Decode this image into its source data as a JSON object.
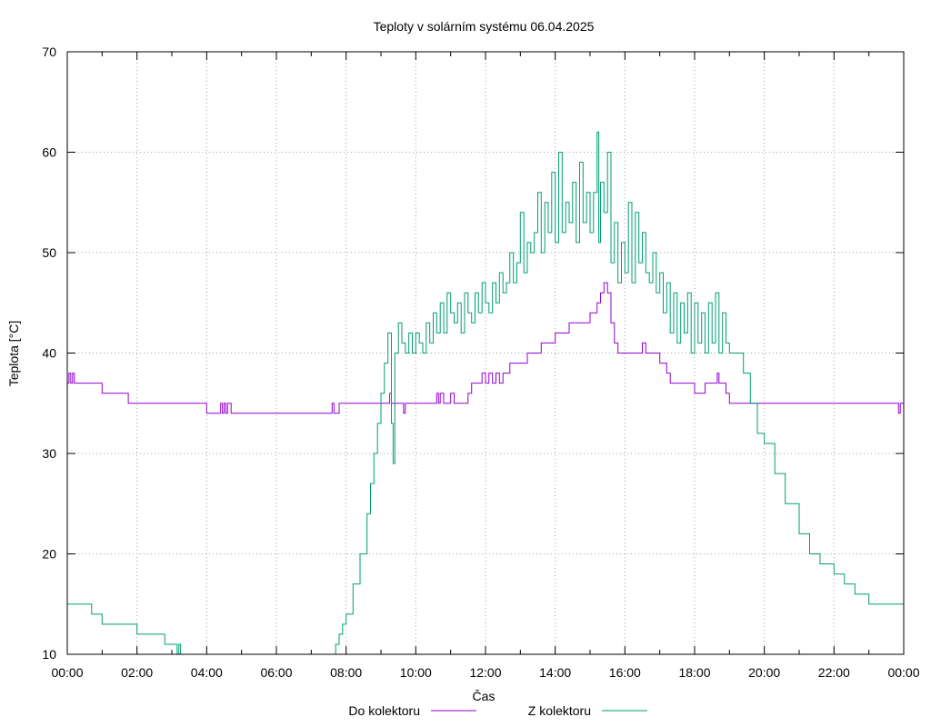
{
  "chart_data": {
    "type": "line",
    "title": "Teploty v solárním systému 06.04.2025",
    "xlabel": "Čas",
    "ylabel": "Teplota [°C]",
    "xlim": [
      0,
      24
    ],
    "ylim": [
      10,
      70
    ],
    "x_ticks": [
      0,
      2,
      4,
      6,
      8,
      10,
      12,
      14,
      16,
      18,
      20,
      22,
      24
    ],
    "x_tick_labels": [
      "00:00",
      "02:00",
      "04:00",
      "06:00",
      "08:00",
      "10:00",
      "12:00",
      "14:00",
      "16:00",
      "18:00",
      "20:00",
      "22:00",
      "00:00"
    ],
    "y_ticks": [
      10,
      20,
      30,
      40,
      50,
      60,
      70
    ],
    "grid": true,
    "legend_position": "bottom",
    "colors": {
      "Do kolektoru": "#9400d3",
      "Z kolektoru": "#009e73"
    },
    "series": [
      {
        "name": "Do kolektoru",
        "x": [
          0,
          0.05,
          0.1,
          0.15,
          0.2,
          0.3,
          0.5,
          0.9,
          1.0,
          1.5,
          1.7,
          1.75,
          2.5,
          3.0,
          3.5,
          3.99,
          4.0,
          4.3,
          4.4,
          4.45,
          4.5,
          4.55,
          4.6,
          4.7,
          4.75,
          5.0,
          6.0,
          7.0,
          7.5,
          7.55,
          7.6,
          7.65,
          7.7,
          7.8,
          7.9,
          8.0,
          8.5,
          9.0,
          9.2,
          9.25,
          9.3,
          9.5,
          9.6,
          9.65,
          9.7,
          9.8,
          10.0,
          10.5,
          10.6,
          10.65,
          10.7,
          10.8,
          11.0,
          11.1,
          11.2,
          11.5,
          11.6,
          11.65,
          11.7,
          11.8,
          11.9,
          12.0,
          12.1,
          12.2,
          12.3,
          12.4,
          12.5,
          12.6,
          12.7,
          12.8,
          13.0,
          13.2,
          13.5,
          13.6,
          13.8,
          14.0,
          14.2,
          14.4,
          14.5,
          14.7,
          14.8,
          15.0,
          15.1,
          15.2,
          15.3,
          15.4,
          15.5,
          15.6,
          15.7,
          15.8,
          16.0,
          16.3,
          16.4,
          16.5,
          16.6,
          16.8,
          16.9,
          17.0,
          17.2,
          17.3,
          17.5,
          17.8,
          18.0,
          18.3,
          18.5,
          18.6,
          18.65,
          18.7,
          18.8,
          18.9,
          19.0,
          19.5,
          20.0,
          21.0,
          22.0,
          23.0,
          23.5,
          23.8,
          23.85,
          23.9,
          24.0
        ],
        "y": [
          37,
          38,
          37,
          38,
          37,
          37,
          37,
          37,
          36,
          36,
          36,
          35,
          35,
          35,
          35,
          35,
          34,
          34,
          35,
          34,
          35,
          34,
          35,
          34,
          34,
          34,
          34,
          34,
          34,
          34,
          35,
          34,
          34,
          35,
          35,
          35,
          35,
          35,
          35,
          36,
          35,
          35,
          35,
          34,
          35,
          35,
          35,
          35,
          36,
          35,
          36,
          35,
          36,
          35,
          35,
          36,
          37,
          37,
          37,
          37,
          38,
          37,
          38,
          37,
          38,
          37,
          38,
          38,
          39,
          39,
          39,
          40,
          40,
          41,
          41,
          42,
          42,
          43,
          43,
          43,
          43,
          44,
          44,
          45,
          46,
          47,
          46,
          43,
          41,
          40,
          40,
          40,
          40,
          41,
          40,
          40,
          40,
          39,
          38,
          37,
          37,
          37,
          36,
          37,
          37,
          37,
          38,
          37,
          37,
          36,
          35,
          35,
          35,
          35,
          35,
          35,
          35,
          35,
          34,
          35,
          34
        ]
      },
      {
        "name": "Z kolektoru",
        "x": [
          0,
          0.4,
          0.7,
          0.8,
          0.9,
          1.0,
          1.3,
          1.6,
          2.0,
          2.2,
          2.5,
          2.8,
          2.9,
          3.0,
          3.1,
          3.15,
          3.2,
          3.25,
          7.6,
          7.7,
          7.8,
          7.9,
          8.0,
          8.2,
          8.4,
          8.6,
          8.7,
          8.8,
          8.9,
          9.0,
          9.1,
          9.2,
          9.3,
          9.35,
          9.4,
          9.5,
          9.6,
          9.7,
          9.8,
          9.9,
          10.0,
          10.1,
          10.2,
          10.3,
          10.4,
          10.5,
          10.6,
          10.7,
          10.8,
          10.9,
          11.0,
          11.1,
          11.2,
          11.3,
          11.4,
          11.5,
          11.6,
          11.7,
          11.8,
          11.9,
          12.0,
          12.1,
          12.2,
          12.3,
          12.4,
          12.5,
          12.6,
          12.7,
          12.8,
          12.9,
          13.0,
          13.1,
          13.2,
          13.3,
          13.4,
          13.5,
          13.6,
          13.7,
          13.8,
          13.9,
          14.0,
          14.1,
          14.2,
          14.3,
          14.4,
          14.5,
          14.6,
          14.7,
          14.8,
          14.9,
          15.0,
          15.1,
          15.2,
          15.25,
          15.3,
          15.4,
          15.5,
          15.6,
          15.7,
          15.8,
          15.9,
          16.0,
          16.1,
          16.2,
          16.3,
          16.4,
          16.5,
          16.6,
          16.7,
          16.8,
          16.9,
          17.0,
          17.1,
          17.2,
          17.3,
          17.4,
          17.5,
          17.6,
          17.7,
          17.8,
          17.9,
          18.0,
          18.1,
          18.2,
          18.3,
          18.4,
          18.5,
          18.6,
          18.7,
          18.8,
          18.9,
          19.0,
          19.2,
          19.4,
          19.6,
          19.8,
          20.0,
          20.3,
          20.6,
          21.0,
          21.3,
          21.6,
          22.0,
          22.3,
          22.6,
          23.0,
          23.3,
          23.6,
          24.0
        ],
        "y": [
          15,
          15,
          14,
          14,
          14,
          13,
          13,
          13,
          12,
          12,
          12,
          11,
          11,
          11,
          11,
          10,
          11,
          10,
          10,
          11,
          12,
          13,
          14,
          17,
          20,
          24,
          27,
          30,
          33,
          36,
          39,
          42,
          33,
          29,
          40,
          43,
          41,
          40,
          42,
          40,
          42,
          41,
          40,
          43,
          41,
          44,
          42,
          45,
          42,
          46,
          44,
          43,
          45,
          42,
          46,
          44,
          43,
          46,
          44,
          47,
          45,
          44,
          47,
          45,
          48,
          46,
          47,
          50,
          47,
          49,
          54,
          48,
          51,
          50,
          52,
          56,
          50,
          55,
          52,
          58,
          51,
          60,
          52,
          55,
          53,
          57,
          51,
          59,
          53,
          56,
          52,
          56,
          62,
          51,
          57,
          54,
          60,
          49,
          53,
          47,
          51,
          48,
          55,
          47,
          54,
          49,
          52,
          48,
          47,
          50,
          46,
          48,
          44,
          47,
          42,
          46,
          41,
          45,
          42,
          46,
          40,
          45,
          41,
          44,
          40,
          45,
          41,
          46,
          40,
          44,
          41,
          40,
          40,
          38,
          35,
          32,
          31,
          28,
          25,
          22,
          20,
          19,
          18,
          17,
          16,
          15,
          15,
          15,
          14
        ]
      }
    ]
  }
}
